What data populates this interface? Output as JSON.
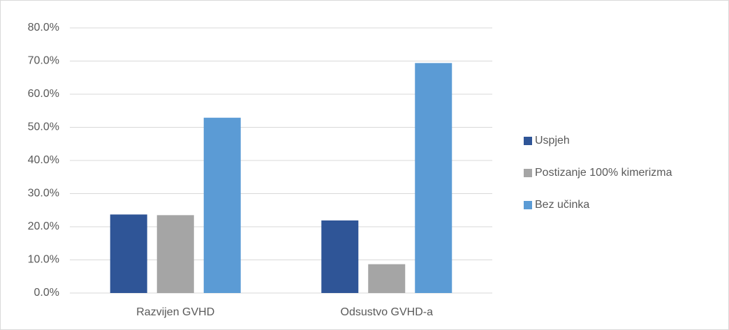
{
  "chart_data": {
    "type": "bar",
    "categories": [
      "Razvijen GVHD",
      "Odsustvo GVHD-a"
    ],
    "series": [
      {
        "name": "Uspjeh",
        "color": "#2f5597",
        "values": [
          23.7,
          21.9
        ]
      },
      {
        "name": "Postizanje 100% kimerizma",
        "color": "#a5a5a5",
        "values": [
          23.5,
          8.7
        ]
      },
      {
        "name": "Bez učinka",
        "color": "#5b9bd5",
        "values": [
          52.9,
          69.4
        ]
      }
    ],
    "ylim": [
      0,
      80
    ],
    "yticks": [
      {
        "value": 0,
        "label": "0.0%"
      },
      {
        "value": 10,
        "label": "10.0%"
      },
      {
        "value": 20,
        "label": "20.0%"
      },
      {
        "value": 30,
        "label": "30.0%"
      },
      {
        "value": 40,
        "label": "40.0%"
      },
      {
        "value": 50,
        "label": "50.0%"
      },
      {
        "value": 60,
        "label": "60.0%"
      },
      {
        "value": 70,
        "label": "70.0%"
      },
      {
        "value": 80,
        "label": "80.0%"
      }
    ],
    "grid": true,
    "legend": "right"
  }
}
